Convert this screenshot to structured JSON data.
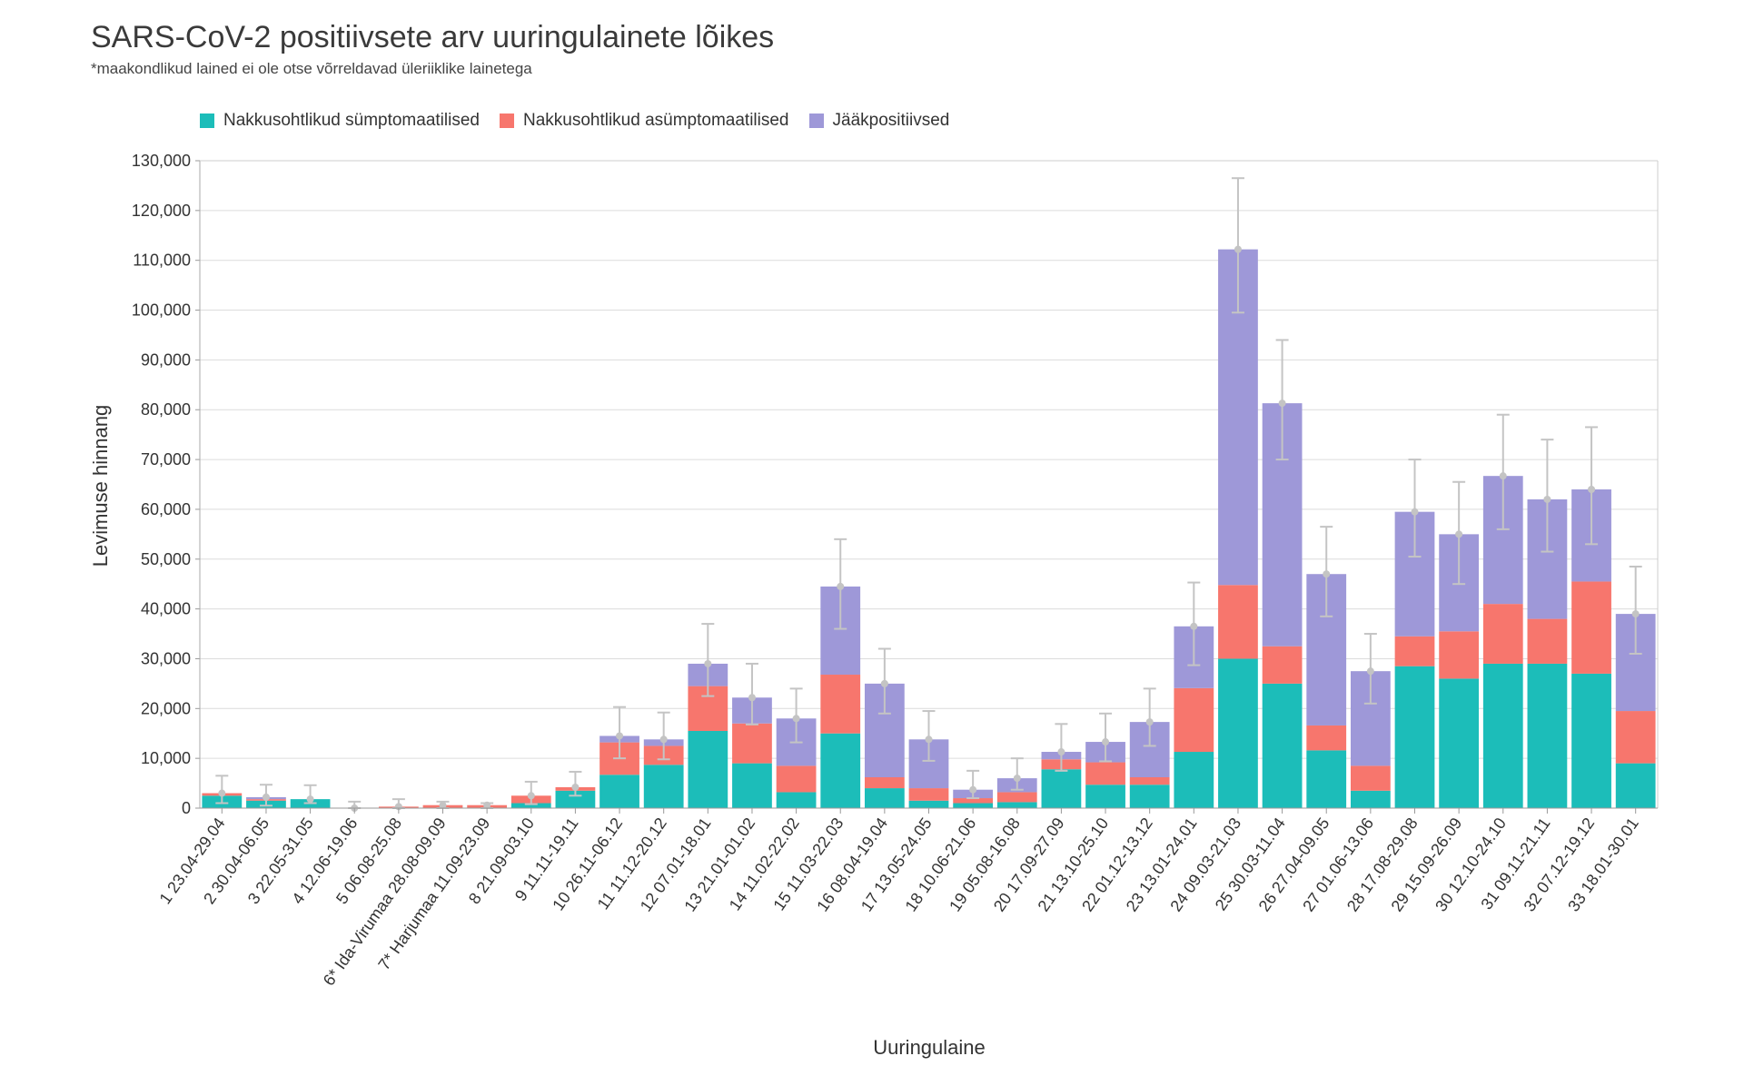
{
  "chart_data": {
    "type": "bar",
    "stacked": true,
    "title": "SARS-CoV-2 positiivsete arv uuringulainete lõikes",
    "subtitle": "*maakondlikud lained ei ole otse võrreldavad üleriiklike lainetega",
    "xlabel": "Uuringulaine",
    "ylabel": "Levimuse hinnang",
    "ylim": [
      0,
      130000
    ],
    "yticks": [
      0,
      10000,
      20000,
      30000,
      40000,
      50000,
      60000,
      70000,
      80000,
      90000,
      100000,
      110000,
      120000,
      130000
    ],
    "ytick_labels": [
      "0",
      "10,000",
      "20,000",
      "30,000",
      "40,000",
      "50,000",
      "60,000",
      "70,000",
      "80,000",
      "90,000",
      "100,000",
      "110,000",
      "120,000",
      "130,000"
    ],
    "legend_position": "top-left",
    "categories": [
      "1 23.04-29.04",
      "2 30.04-06.05",
      "3 22.05-31.05",
      "4 12.06-19.06",
      "5 06.08-25.08",
      "6* Ida-Virumaa 28.08-09.09",
      "7* Harjumaa 11.09-23.09",
      "8 21.09-03.10",
      "9 11.11-19.11",
      "10 26.11-06.12",
      "11 11.12-20.12",
      "12 07.01-18.01",
      "13 21.01-01.02",
      "14 11.02-22.02",
      "15 11.03-22.03",
      "16 08.04-19.04",
      "17 13.05-24.05",
      "18 10.06-21.06",
      "19 05.08-16.08",
      "20 17.09-27.09",
      "21 13.10-25.10",
      "22 01.12-13.12",
      "23 13.01-24.01",
      "24 09.03-21.03",
      "25 30.03-11.04",
      "26 27.04-09.05",
      "27 01.06-13.06",
      "28 17.08-29.08",
      "29 15.09-26.09",
      "30 12.10-24.10",
      "31 09.11-21.11",
      "32 07.12-19.12",
      "33 18.01-30.01"
    ],
    "series": [
      {
        "name": "Nakkusohtlikud sümptomaatilised",
        "color": "#1cbdb9",
        "values": [
          2500,
          1500,
          1800,
          0,
          0,
          0,
          0,
          1000,
          3500,
          6700,
          8700,
          15500,
          9000,
          3200,
          15000,
          4000,
          1500,
          1000,
          1200,
          7800,
          4700,
          4700,
          11300,
          30000,
          25000,
          11600,
          3500,
          28500,
          26000,
          29000,
          29000,
          27000,
          9000
        ]
      },
      {
        "name": "Nakkusohtlikud asümptomaatilised",
        "color": "#f7766d",
        "values": [
          500,
          300,
          0,
          0,
          300,
          600,
          600,
          1500,
          700,
          6500,
          3800,
          9000,
          8000,
          5300,
          11800,
          2200,
          2500,
          1000,
          2000,
          2000,
          4500,
          1500,
          12800,
          14800,
          7500,
          5000,
          5000,
          6000,
          9500,
          12000,
          9000,
          18500,
          10500
        ]
      },
      {
        "name": "Jääkpositiivsed",
        "color": "#9e98d8",
        "values": [
          0,
          400,
          0,
          0,
          0,
          0,
          0,
          0,
          0,
          1300,
          1300,
          4500,
          5200,
          9500,
          17700,
          18800,
          9800,
          1700,
          2800,
          1500,
          4100,
          11100,
          12400,
          67400,
          48800,
          30400,
          19000,
          25000,
          19500,
          25700,
          24000,
          18500,
          19500
        ]
      }
    ],
    "error_bars": {
      "lower": [
        1000,
        500,
        1000,
        0,
        0,
        0,
        0,
        800,
        2500,
        10000,
        9800,
        22500,
        16800,
        13200,
        36000,
        19000,
        9500,
        2000,
        3700,
        7500,
        9400,
        12500,
        28700,
        99500,
        70000,
        38500,
        21000,
        50500,
        45000,
        56000,
        51500,
        53000,
        31000
      ],
      "upper": [
        6500,
        4700,
        4600,
        1300,
        1800,
        1300,
        1000,
        5300,
        7300,
        20300,
        19200,
        37000,
        29000,
        24000,
        54000,
        32000,
        19500,
        7500,
        10000,
        16900,
        19000,
        24000,
        45300,
        126500,
        94000,
        56500,
        35000,
        70000,
        65500,
        79000,
        74000,
        76500,
        48500
      ]
    }
  }
}
